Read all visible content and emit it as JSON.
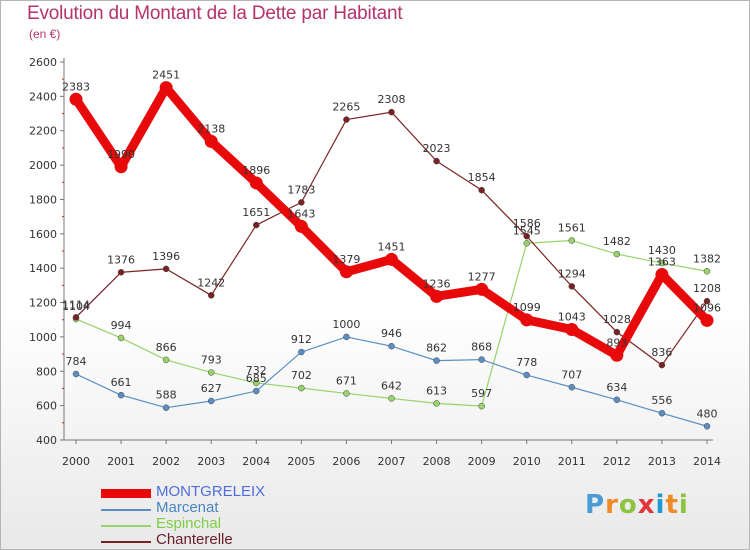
{
  "header": {
    "title": "Evolution du Montant de la Dette par Habitant",
    "unit": "(en €)"
  },
  "brand": {
    "letters": [
      "P",
      "r",
      "o",
      "x",
      "i",
      "t",
      "i"
    ],
    "colors": [
      "#4a9bd6",
      "#ef8a24",
      "#8cc43f",
      "#e2363a",
      "#1f9ad6",
      "#ef8a24",
      "#8cc43f"
    ]
  },
  "chart_data": {
    "type": "line",
    "title": "Evolution du Montant de la Dette par Habitant",
    "ylabel": "(en €)",
    "x": [
      "2000",
      "2001",
      "2002",
      "2003",
      "2004",
      "2005",
      "2006",
      "2007",
      "2008",
      "2009",
      "2010",
      "2011",
      "2012",
      "2013",
      "2014"
    ],
    "ylim": [
      400,
      2600
    ],
    "yticks": [
      400,
      600,
      800,
      1000,
      1200,
      1400,
      1600,
      1800,
      2000,
      2200,
      2400,
      2600
    ],
    "grid": false,
    "legend_position": "bottom-left",
    "series": [
      {
        "name": "MONTGRELEIX",
        "color": "#e8090b",
        "legend_color": "#4f6edb",
        "values": [
          2383,
          1990,
          2451,
          2138,
          1896,
          1643,
          1379,
          1451,
          1236,
          1277,
          1099,
          1043,
          893,
          1363,
          1096
        ]
      },
      {
        "name": "Marcenat",
        "color": "#5b8fc4",
        "legend_color": "#4a86c0",
        "values": [
          784,
          661,
          588,
          627,
          685,
          912,
          1000,
          946,
          862,
          868,
          778,
          707,
          634,
          556,
          480
        ]
      },
      {
        "name": "Espinchal",
        "color": "#99d36a",
        "legend_color": "#7ccf45",
        "values": [
          1104,
          994,
          866,
          793,
          732,
          702,
          671,
          642,
          613,
          597,
          1545,
          1561,
          1482,
          1430,
          1382
        ]
      },
      {
        "name": "Chanterelle",
        "color": "#7a2222",
        "legend_color": "#6b1d2a",
        "values": [
          1114,
          1376,
          1396,
          1242,
          1651,
          1783,
          2265,
          2308,
          2023,
          1854,
          1586,
          1294,
          1028,
          836,
          1208
        ]
      }
    ]
  }
}
